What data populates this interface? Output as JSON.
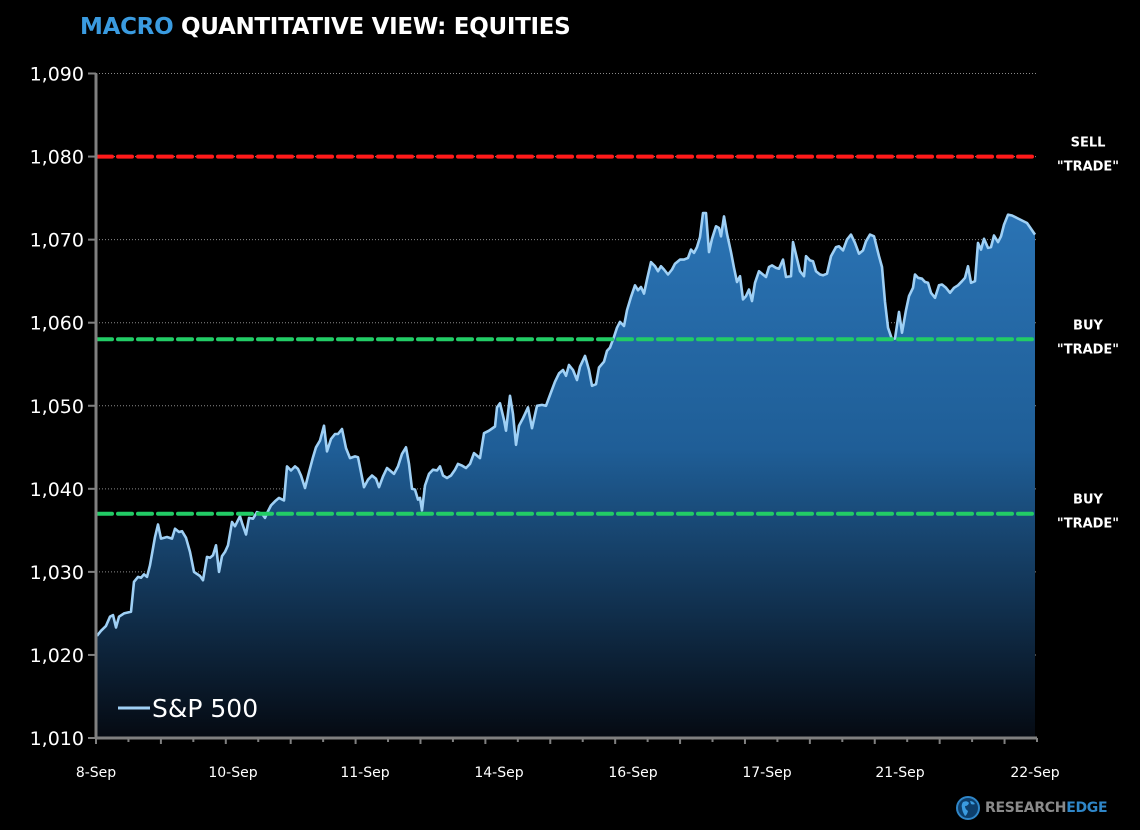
{
  "header": {
    "title_accent": "MACRO",
    "title_rest": " QUANTITATIVE VIEW: EQUITIES"
  },
  "colors": {
    "accent": "#3a9be0",
    "line": "#9fd0f5",
    "fill_top": "#2a73b4",
    "fill_bottom": "#050a12",
    "sell": "#ff1a1a",
    "buy": "#22cc66",
    "axis": "#808080"
  },
  "branding": {
    "logo_word_1": "RESEARCH",
    "logo_word_2": "EDGE",
    "logo_icon": "globe-icon"
  },
  "chart_data": {
    "type": "area",
    "title": "MACRO QUANTITATIVE VIEW: EQUITIES",
    "xlabel": "",
    "ylabel": "",
    "ylim": [
      1010,
      1090
    ],
    "yticks": [
      "1,010",
      "1,020",
      "1,030",
      "1,040",
      "1,050",
      "1,060",
      "1,070",
      "1,080",
      "1,090"
    ],
    "grid": true,
    "legend": {
      "position": "bottom-left",
      "entries": [
        "S&P 500"
      ]
    },
    "categories": [
      "8-Sep",
      "10-Sep",
      "11-Sep",
      "14-Sep",
      "16-Sep",
      "17-Sep",
      "21-Sep",
      "22-Sep"
    ],
    "series": [
      {
        "name": "S&P 500",
        "note": "intraday path; x in pixel position across plot area, value in index points",
        "points": [
          [
            97,
            1022.3
          ],
          [
            101,
            1022.9
          ],
          [
            106,
            1023.5
          ],
          [
            110,
            1024.6
          ],
          [
            113,
            1024.8
          ],
          [
            116,
            1023.3
          ],
          [
            119,
            1024.6
          ],
          [
            124,
            1025.0
          ],
          [
            131,
            1025.2
          ],
          [
            134,
            1028.8
          ],
          [
            138,
            1029.4
          ],
          [
            141,
            1029.3
          ],
          [
            144,
            1029.7
          ],
          [
            147,
            1029.4
          ],
          [
            150,
            1030.8
          ],
          [
            155,
            1034.2
          ],
          [
            158,
            1035.7
          ],
          [
            161,
            1034.0
          ],
          [
            167,
            1034.2
          ],
          [
            172,
            1034.0
          ],
          [
            175,
            1035.2
          ],
          [
            179,
            1034.8
          ],
          [
            182,
            1034.9
          ],
          [
            186,
            1034.1
          ],
          [
            190,
            1032.4
          ],
          [
            194,
            1030.0
          ],
          [
            200,
            1029.5
          ],
          [
            203,
            1029.0
          ],
          [
            207,
            1031.8
          ],
          [
            210,
            1031.7
          ],
          [
            213,
            1032.0
          ],
          [
            216,
            1033.2
          ],
          [
            219,
            1030.0
          ],
          [
            222,
            1031.9
          ],
          [
            225,
            1032.4
          ],
          [
            228,
            1033.2
          ],
          [
            232,
            1036.0
          ],
          [
            235,
            1035.5
          ],
          [
            240,
            1036.7
          ],
          [
            242,
            1035.9
          ],
          [
            246,
            1034.5
          ],
          [
            249,
            1036.5
          ],
          [
            253,
            1036.4
          ],
          [
            257,
            1037.2
          ],
          [
            262,
            1037.0
          ],
          [
            265,
            1036.5
          ],
          [
            268,
            1037.3
          ],
          [
            271,
            1038.0
          ],
          [
            275,
            1038.5
          ],
          [
            279,
            1038.9
          ],
          [
            284,
            1038.6
          ],
          [
            287,
            1042.7
          ],
          [
            291,
            1042.2
          ],
          [
            295,
            1042.7
          ],
          [
            298,
            1042.4
          ],
          [
            301,
            1041.6
          ],
          [
            305,
            1040.1
          ],
          [
            309,
            1042.0
          ],
          [
            313,
            1043.8
          ],
          [
            316,
            1045.0
          ],
          [
            320,
            1045.8
          ],
          [
            324,
            1047.6
          ],
          [
            327,
            1044.5
          ],
          [
            331,
            1046.0
          ],
          [
            335,
            1046.6
          ],
          [
            338,
            1046.6
          ],
          [
            342,
            1047.2
          ],
          [
            346,
            1044.9
          ],
          [
            350,
            1043.7
          ],
          [
            355,
            1043.9
          ],
          [
            358,
            1043.8
          ],
          [
            362,
            1041.4
          ],
          [
            364,
            1040.2
          ],
          [
            368,
            1041.1
          ],
          [
            372,
            1041.6
          ],
          [
            376,
            1041.2
          ],
          [
            379,
            1040.2
          ],
          [
            383,
            1041.5
          ],
          [
            387,
            1042.5
          ],
          [
            390,
            1042.2
          ],
          [
            394,
            1041.8
          ],
          [
            398,
            1042.7
          ],
          [
            402,
            1044.2
          ],
          [
            406,
            1045.0
          ],
          [
            409,
            1043.0
          ],
          [
            412,
            1040.0
          ],
          [
            415,
            1039.9
          ],
          [
            418,
            1038.7
          ],
          [
            420,
            1038.9
          ],
          [
            422,
            1037.4
          ],
          [
            425,
            1040.4
          ],
          [
            429,
            1041.8
          ],
          [
            433,
            1042.3
          ],
          [
            437,
            1042.2
          ],
          [
            440,
            1042.7
          ],
          [
            443,
            1041.6
          ],
          [
            447,
            1041.3
          ],
          [
            451,
            1041.6
          ],
          [
            455,
            1042.3
          ],
          [
            458,
            1043.0
          ],
          [
            462,
            1042.8
          ],
          [
            466,
            1042.5
          ],
          [
            470,
            1043.0
          ],
          [
            474,
            1044.3
          ],
          [
            477,
            1044.0
          ],
          [
            480,
            1043.7
          ],
          [
            484,
            1046.7
          ],
          [
            489,
            1047.0
          ],
          [
            495,
            1047.5
          ],
          [
            497,
            1049.8
          ],
          [
            500,
            1050.3
          ],
          [
            504,
            1048.3
          ],
          [
            506,
            1047.0
          ],
          [
            510,
            1051.2
          ],
          [
            513,
            1049.0
          ],
          [
            516,
            1045.3
          ],
          [
            519,
            1047.6
          ],
          [
            523,
            1048.5
          ],
          [
            528,
            1049.8
          ],
          [
            532,
            1047.3
          ],
          [
            537,
            1050.0
          ],
          [
            542,
            1050.1
          ],
          [
            546,
            1050.0
          ],
          [
            550,
            1051.3
          ],
          [
            555,
            1052.9
          ],
          [
            559,
            1053.9
          ],
          [
            563,
            1054.3
          ],
          [
            566,
            1053.6
          ],
          [
            569,
            1054.9
          ],
          [
            573,
            1054.3
          ],
          [
            577,
            1053.1
          ],
          [
            580,
            1054.7
          ],
          [
            585,
            1056.0
          ],
          [
            589,
            1054.3
          ],
          [
            592,
            1052.4
          ],
          [
            596,
            1052.6
          ],
          [
            599,
            1054.6
          ],
          [
            604,
            1055.3
          ],
          [
            607,
            1056.6
          ],
          [
            610,
            1057.0
          ],
          [
            614,
            1058.3
          ],
          [
            617,
            1059.4
          ],
          [
            620,
            1060.1
          ],
          [
            624,
            1059.6
          ],
          [
            627,
            1061.5
          ],
          [
            631,
            1063.1
          ],
          [
            635,
            1064.5
          ],
          [
            638,
            1063.9
          ],
          [
            641,
            1064.3
          ],
          [
            644,
            1063.5
          ],
          [
            647,
            1065.2
          ],
          [
            651,
            1067.3
          ],
          [
            655,
            1066.8
          ],
          [
            658,
            1066.2
          ],
          [
            661,
            1066.8
          ],
          [
            664,
            1066.4
          ],
          [
            668,
            1065.8
          ],
          [
            672,
            1066.4
          ],
          [
            675,
            1067.1
          ],
          [
            680,
            1067.6
          ],
          [
            684,
            1067.6
          ],
          [
            688,
            1067.8
          ],
          [
            691,
            1068.8
          ],
          [
            694,
            1068.4
          ],
          [
            697,
            1069.1
          ],
          [
            700,
            1070.3
          ],
          [
            703,
            1073.2
          ],
          [
            706,
            1073.2
          ],
          [
            709,
            1068.5
          ],
          [
            712,
            1070.1
          ],
          [
            716,
            1071.6
          ],
          [
            719,
            1071.4
          ],
          [
            721,
            1070.4
          ],
          [
            724,
            1072.8
          ],
          [
            727,
            1070.7
          ],
          [
            731,
            1068.5
          ],
          [
            734,
            1066.6
          ],
          [
            737,
            1064.9
          ],
          [
            740,
            1065.6
          ],
          [
            743,
            1062.8
          ],
          [
            746,
            1063.2
          ],
          [
            749,
            1064.0
          ],
          [
            752,
            1062.6
          ],
          [
            755,
            1064.8
          ],
          [
            759,
            1066.2
          ],
          [
            762,
            1065.9
          ],
          [
            766,
            1065.5
          ],
          [
            769,
            1066.7
          ],
          [
            772,
            1066.9
          ],
          [
            776,
            1066.6
          ],
          [
            779,
            1066.5
          ],
          [
            783,
            1067.6
          ],
          [
            786,
            1065.5
          ],
          [
            791,
            1065.6
          ],
          [
            793,
            1069.7
          ],
          [
            797,
            1067.7
          ],
          [
            800,
            1066.2
          ],
          [
            804,
            1065.6
          ],
          [
            806,
            1068.0
          ],
          [
            810,
            1067.5
          ],
          [
            813,
            1067.4
          ],
          [
            816,
            1066.2
          ],
          [
            820,
            1065.8
          ],
          [
            823,
            1065.7
          ],
          [
            827,
            1065.9
          ],
          [
            831,
            1068.0
          ],
          [
            836,
            1069.1
          ],
          [
            839,
            1069.2
          ],
          [
            843,
            1068.7
          ],
          [
            847,
            1070.0
          ],
          [
            851,
            1070.6
          ],
          [
            855,
            1069.6
          ],
          [
            859,
            1068.3
          ],
          [
            863,
            1068.7
          ],
          [
            866,
            1069.8
          ],
          [
            870,
            1070.6
          ],
          [
            874,
            1070.4
          ],
          [
            879,
            1068.0
          ],
          [
            882,
            1066.7
          ],
          [
            885,
            1062.5
          ],
          [
            888,
            1059.4
          ],
          [
            892,
            1058.0
          ],
          [
            895,
            1058.1
          ],
          [
            899,
            1061.3
          ],
          [
            902,
            1058.8
          ],
          [
            906,
            1061.5
          ],
          [
            909,
            1063.2
          ],
          [
            913,
            1064.2
          ],
          [
            915,
            1065.8
          ],
          [
            918,
            1065.4
          ],
          [
            922,
            1065.3
          ],
          [
            925,
            1064.9
          ],
          [
            928,
            1064.8
          ],
          [
            931,
            1063.6
          ],
          [
            935,
            1063.0
          ],
          [
            939,
            1064.5
          ],
          [
            942,
            1064.6
          ],
          [
            946,
            1064.2
          ],
          [
            950,
            1063.6
          ],
          [
            954,
            1064.2
          ],
          [
            958,
            1064.5
          ],
          [
            962,
            1065.0
          ],
          [
            965,
            1065.4
          ],
          [
            968,
            1066.8
          ],
          [
            971,
            1064.8
          ],
          [
            975,
            1065.0
          ],
          [
            978,
            1069.6
          ],
          [
            981,
            1068.8
          ],
          [
            984,
            1070.1
          ],
          [
            988,
            1069.0
          ],
          [
            991,
            1069.1
          ],
          [
            994,
            1070.5
          ],
          [
            998,
            1069.7
          ],
          [
            1001,
            1070.4
          ],
          [
            1004,
            1071.8
          ],
          [
            1008,
            1073.0
          ],
          [
            1012,
            1072.9
          ],
          [
            1017,
            1072.6
          ],
          [
            1022,
            1072.3
          ],
          [
            1027,
            1072.0
          ],
          [
            1031,
            1071.3
          ],
          [
            1035,
            1070.6
          ]
        ]
      }
    ],
    "reference_lines": [
      {
        "name": "sell-trade",
        "value": 1080,
        "color": "#ff1a1a",
        "label_line1": "SELL",
        "label_line2": "\"TRADE\""
      },
      {
        "name": "buy-trade-upper",
        "value": 1058,
        "color": "#22cc66",
        "label_line1": "BUY",
        "label_line2": "\"TRADE\""
      },
      {
        "name": "buy-trade-lower",
        "value": 1037,
        "color": "#22cc66",
        "label_line1": "BUY",
        "label_line2": "\"TRADE\""
      }
    ]
  }
}
